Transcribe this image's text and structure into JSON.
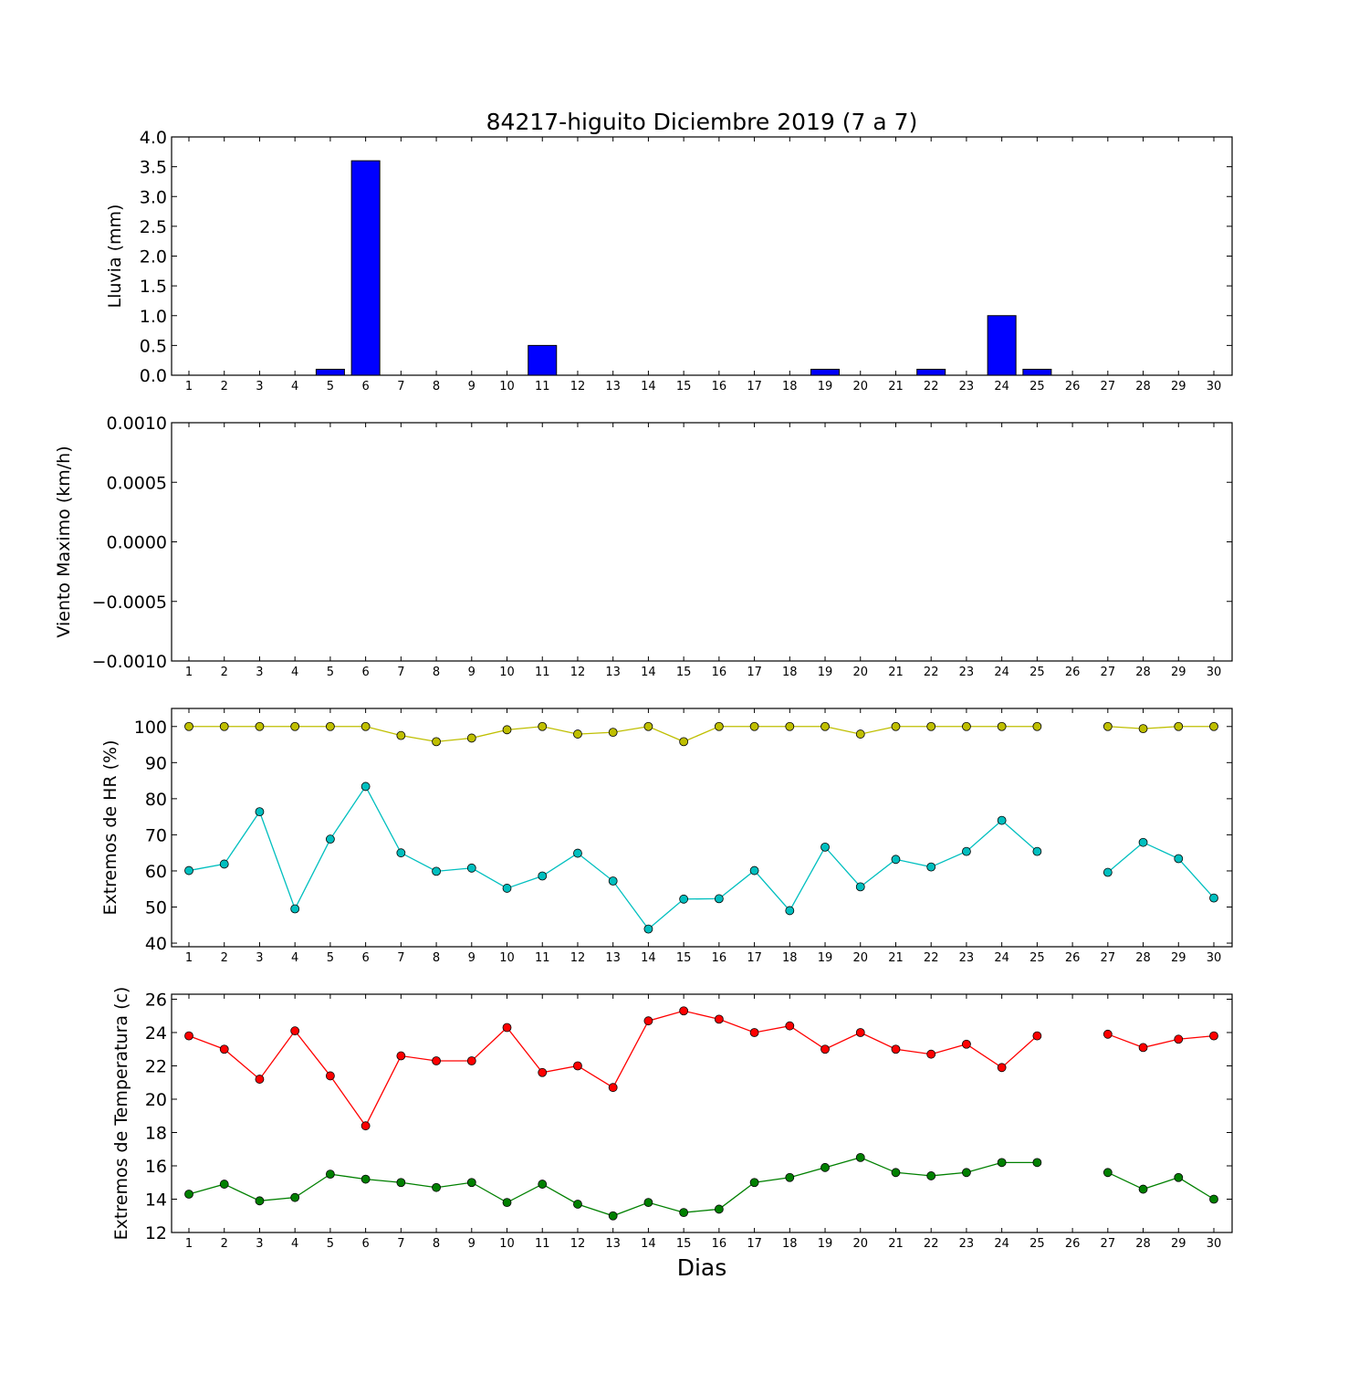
{
  "chart_data": [
    {
      "type": "bar",
      "title": "84217-higuito Diciembre 2019  (7 a 7)",
      "ylabel": "Lluvia (mm)",
      "xlabel": "",
      "ylim": [
        0,
        4
      ],
      "yticks": [
        "0.0",
        "0.5",
        "1.0",
        "1.5",
        "2.0",
        "2.5",
        "3.0",
        "3.5",
        "4.0"
      ],
      "categories": [
        "1",
        "2",
        "3",
        "4",
        "5",
        "6",
        "7",
        "8",
        "9",
        "10",
        "11",
        "12",
        "13",
        "14",
        "15",
        "16",
        "17",
        "18",
        "19",
        "20",
        "21",
        "22",
        "23",
        "24",
        "25",
        "26",
        "27",
        "28",
        "29",
        "30"
      ],
      "values": [
        0,
        0,
        0,
        0,
        0.1,
        3.6,
        0,
        0,
        0,
        0,
        0.5,
        0,
        0,
        0,
        0,
        0,
        0,
        0,
        0.1,
        0,
        0,
        0.1,
        0,
        1.0,
        0.1,
        0,
        0,
        0,
        0,
        0
      ],
      "colors": {
        "bar": "#0000ff"
      }
    },
    {
      "type": "line",
      "title": "",
      "ylabel": "Viento Maximo (km/h)",
      "xlabel": "",
      "ylim": [
        -0.001,
        0.001
      ],
      "yticks": [
        "−0.0010",
        "−0.0005",
        "0.0000",
        "0.0005",
        "0.0010"
      ],
      "categories": [
        "1",
        "2",
        "3",
        "4",
        "5",
        "6",
        "7",
        "8",
        "9",
        "10",
        "11",
        "12",
        "13",
        "14",
        "15",
        "16",
        "17",
        "18",
        "19",
        "20",
        "21",
        "22",
        "23",
        "24",
        "25",
        "26",
        "27",
        "28",
        "29",
        "30"
      ],
      "series": []
    },
    {
      "type": "line",
      "title": "",
      "ylabel": "Extremos de HR (%)",
      "xlabel": "",
      "ylim": [
        39,
        105
      ],
      "yticks": [
        "40",
        "50",
        "60",
        "70",
        "80",
        "90",
        "100"
      ],
      "categories": [
        "1",
        "2",
        "3",
        "4",
        "5",
        "6",
        "7",
        "8",
        "9",
        "10",
        "11",
        "12",
        "13",
        "14",
        "15",
        "16",
        "17",
        "18",
        "19",
        "20",
        "21",
        "22",
        "23",
        "24",
        "25",
        "26",
        "27",
        "28",
        "29",
        "30"
      ],
      "series": [
        {
          "color": "#bfbf00",
          "values": [
            100,
            100,
            100,
            100,
            100,
            100,
            97.5,
            95.8,
            96.8,
            99.1,
            100,
            97.9,
            98.4,
            100,
            95.8,
            100,
            100,
            100,
            100,
            97.9,
            100,
            100,
            100,
            100,
            100,
            null,
            100,
            99.4,
            100,
            100
          ]
        },
        {
          "color": "#00bfbf",
          "values": [
            60.1,
            61.9,
            76.4,
            49.5,
            68.8,
            83.4,
            65,
            59.9,
            60.8,
            55.2,
            58.6,
            64.9,
            57.2,
            43.9,
            52.2,
            52.3,
            60.1,
            49,
            66.6,
            55.6,
            63.2,
            61.1,
            65.4,
            74,
            65.4,
            null,
            59.6,
            67.9,
            63.4,
            52.5
          ]
        }
      ]
    },
    {
      "type": "line",
      "title": "",
      "ylabel": "Extremos de Temperatura (c)",
      "xlabel": "Dias",
      "ylim": [
        12,
        26.3
      ],
      "yticks": [
        "12",
        "14",
        "16",
        "18",
        "20",
        "22",
        "24",
        "26"
      ],
      "categories": [
        "1",
        "2",
        "3",
        "4",
        "5",
        "6",
        "7",
        "8",
        "9",
        "10",
        "11",
        "12",
        "13",
        "14",
        "15",
        "16",
        "17",
        "18",
        "19",
        "20",
        "21",
        "22",
        "23",
        "24",
        "25",
        "26",
        "27",
        "28",
        "29",
        "30"
      ],
      "series": [
        {
          "color": "#ff0000",
          "values": [
            23.8,
            23,
            21.2,
            24.1,
            21.4,
            18.4,
            22.6,
            22.3,
            22.3,
            24.3,
            21.6,
            22,
            20.7,
            24.7,
            25.3,
            24.8,
            24,
            24.4,
            23,
            24,
            23,
            22.7,
            23.3,
            21.9,
            23.8,
            null,
            23.9,
            23.1,
            23.6,
            23.8
          ]
        },
        {
          "color": "#008000",
          "values": [
            14.3,
            14.9,
            13.9,
            14.1,
            15.5,
            15.2,
            15,
            14.7,
            15,
            13.8,
            14.9,
            13.7,
            13,
            13.8,
            13.2,
            13.4,
            15,
            15.3,
            15.9,
            16.5,
            15.6,
            15.4,
            15.6,
            16.2,
            16.2,
            null,
            15.6,
            14.6,
            15.3,
            14
          ]
        }
      ]
    }
  ]
}
